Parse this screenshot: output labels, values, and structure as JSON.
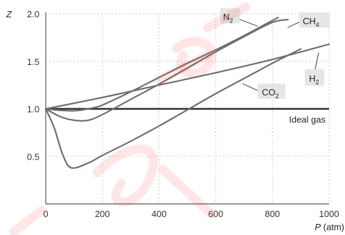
{
  "chart_data": {
    "type": "line",
    "title": "",
    "xlabel": {
      "symbol": "P",
      "unit": "(atm)"
    },
    "ylabel": "Z",
    "xlim": [
      0,
      1000
    ],
    "ylim": [
      0,
      2.0
    ],
    "x_ticks": [
      "0",
      "200",
      "400",
      "600",
      "800",
      "1000"
    ],
    "y_ticks": [
      "0.5",
      "1.0",
      "1.5",
      "2.0"
    ],
    "grid": true,
    "series": [
      {
        "name": "N2",
        "label_main": "N",
        "label_sub": "2",
        "points": [
          [
            0,
            1.0
          ],
          [
            50,
            0.985
          ],
          [
            100,
            0.98
          ],
          [
            150,
            1.0
          ],
          [
            200,
            1.04
          ],
          [
            300,
            1.18
          ],
          [
            400,
            1.33
          ],
          [
            500,
            1.48
          ],
          [
            600,
            1.62
          ],
          [
            700,
            1.77
          ],
          [
            800,
            1.93
          ],
          [
            820,
            1.96
          ]
        ]
      },
      {
        "name": "CH4",
        "label_main": "CH",
        "label_sub": "4",
        "points": [
          [
            0,
            1.0
          ],
          [
            50,
            0.92
          ],
          [
            100,
            0.88
          ],
          [
            150,
            0.88
          ],
          [
            200,
            0.94
          ],
          [
            300,
            1.1
          ],
          [
            400,
            1.26
          ],
          [
            500,
            1.43
          ],
          [
            600,
            1.6
          ],
          [
            700,
            1.76
          ],
          [
            800,
            1.91
          ],
          [
            855,
            1.94
          ]
        ]
      },
      {
        "name": "H2",
        "label_main": "H",
        "label_sub": "2",
        "points": [
          [
            0,
            1.0
          ],
          [
            200,
            1.12
          ],
          [
            400,
            1.25
          ],
          [
            600,
            1.38
          ],
          [
            800,
            1.52
          ],
          [
            1000,
            1.68
          ]
        ]
      },
      {
        "name": "CO2",
        "label_main": "CO",
        "label_sub": "2",
        "points": [
          [
            0,
            1.0
          ],
          [
            30,
            0.8
          ],
          [
            60,
            0.52
          ],
          [
            90,
            0.38
          ],
          [
            150,
            0.43
          ],
          [
            200,
            0.51
          ],
          [
            300,
            0.66
          ],
          [
            400,
            0.82
          ],
          [
            500,
            0.99
          ],
          [
            600,
            1.16
          ],
          [
            700,
            1.32
          ],
          [
            800,
            1.48
          ],
          [
            900,
            1.63
          ]
        ]
      }
    ],
    "reference_line": {
      "label": "Ideal gas",
      "y": 1.0
    }
  }
}
